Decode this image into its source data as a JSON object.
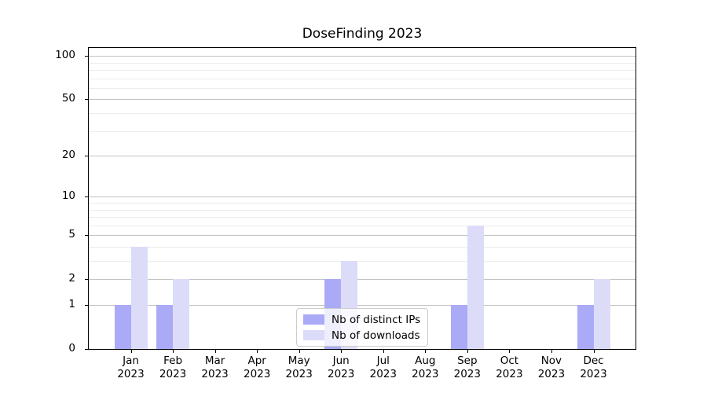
{
  "figure": {
    "title": "DoseFinding 2023"
  },
  "chart_data": {
    "type": "bar",
    "title": "DoseFinding 2023",
    "categories": [
      "Jan",
      "Feb",
      "Mar",
      "Apr",
      "May",
      "Jun",
      "Jul",
      "Aug",
      "Sep",
      "Oct",
      "Nov",
      "Dec"
    ],
    "year_label": "2023",
    "series": [
      {
        "name": "Nb of distinct IPs",
        "color": "#aaaaf6",
        "values": [
          1,
          1,
          0,
          0,
          0,
          2,
          0,
          0,
          1,
          0,
          0,
          1
        ]
      },
      {
        "name": "Nb of downloads",
        "color": "#dcdcf9",
        "values": [
          4,
          2,
          0,
          0,
          0,
          3,
          0,
          0,
          6,
          0,
          0,
          2
        ]
      }
    ],
    "y_axis": {
      "scale": "log1p",
      "major_ticks": [
        0,
        1,
        2,
        5,
        10,
        20,
        50,
        100
      ],
      "minor_ticks": [
        3,
        4,
        6,
        7,
        8,
        9,
        30,
        40,
        60,
        70,
        80,
        90
      ],
      "range_top": 113
    },
    "legend": {
      "position": "lower center",
      "entries": [
        "Nb of distinct IPs",
        "Nb of downloads"
      ]
    },
    "grid": "horizontal",
    "xlabel": "",
    "ylabel": ""
  },
  "colors": {
    "grid_major": "#c3c3c3",
    "grid_minor": "#ececec",
    "frame": "#000000",
    "background": "#ffffff"
  }
}
